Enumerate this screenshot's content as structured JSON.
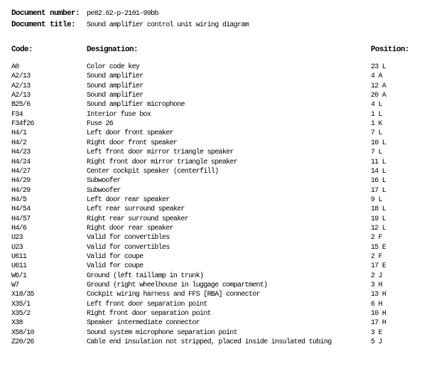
{
  "document": {
    "number_label": "Document number:",
    "number_value": "pe82.62-p-2101-99bb",
    "title_label": "Document title:",
    "title_value": "Sound amplifier control unit wiring diagram"
  },
  "table": {
    "headers": {
      "code": "Code:",
      "designation": "Designation:",
      "position": "Position:"
    },
    "rows": [
      {
        "code": "A0",
        "designation": "Color code key",
        "position": "23 L"
      },
      {
        "code": "A2/13",
        "designation": "Sound amplifier",
        "position": "4 A"
      },
      {
        "code": "A2/13",
        "designation": "Sound amplifier",
        "position": "12 A"
      },
      {
        "code": "A2/13",
        "designation": "Sound amplifier",
        "position": "20 A"
      },
      {
        "code": "B25/6",
        "designation": "Sound amplifier microphone",
        "position": "4 L"
      },
      {
        "code": "F34",
        "designation": "Interior fuse box",
        "position": "1 L"
      },
      {
        "code": "F34f26",
        "designation": "Fuse 26",
        "position": "1 K"
      },
      {
        "code": "H4/1",
        "designation": "Left door front speaker",
        "position": "7 L"
      },
      {
        "code": "H4/2",
        "designation": "Right door front speaker",
        "position": "10 L"
      },
      {
        "code": "H4/23",
        "designation": "Left front door mirror triangle speaker",
        "position": "7 L"
      },
      {
        "code": "H4/24",
        "designation": "Right front door mirror triangle speaker",
        "position": "11 L"
      },
      {
        "code": "H4/27",
        "designation": "Center cockpit speaker (centerfill)",
        "position": "14 L"
      },
      {
        "code": "H4/29",
        "designation": "Subwoofer",
        "position": "16 L"
      },
      {
        "code": "H4/29",
        "designation": "Subwoofer",
        "position": "17 L"
      },
      {
        "code": "H4/5",
        "designation": "Left door rear speaker",
        "position": "9 L"
      },
      {
        "code": "H4/54",
        "designation": "Left rear surround speaker",
        "position": "18 L"
      },
      {
        "code": "H4/57",
        "designation": "Right rear surround speaker",
        "position": "19 L"
      },
      {
        "code": "H4/6",
        "designation": "Right door rear speaker",
        "position": "12 L"
      },
      {
        "code": "U23",
        "designation": "Valid for convertibles",
        "position": "2 F"
      },
      {
        "code": "U23",
        "designation": "Valid for convertibles",
        "position": "15 E"
      },
      {
        "code": "U611",
        "designation": "Valid for coupe",
        "position": "2 F"
      },
      {
        "code": "U611",
        "designation": "Valid for coupe",
        "position": "17 E"
      },
      {
        "code": "W6/1",
        "designation": "Ground (left taillamp in trunk)",
        "position": "2 J"
      },
      {
        "code": "W7",
        "designation": "Ground (right wheelhouse in luggage compartment)",
        "position": "3 H"
      },
      {
        "code": "X18/35",
        "designation": "Cockpit wiring harness and FFS [RBA] connector",
        "position": "13 H"
      },
      {
        "code": "X35/1",
        "designation": "Left front door separation point",
        "position": "6 H"
      },
      {
        "code": "X35/2",
        "designation": "Right front door separation point",
        "position": "10 H"
      },
      {
        "code": "X38",
        "designation": "Speaker intermediate connector",
        "position": "17 H"
      },
      {
        "code": "X58/10",
        "designation": "Sound system microphone separation point",
        "position": "3 E"
      },
      {
        "code": "Z20/26",
        "designation": "Cable end insulation not stripped, placed inside insulated tubing",
        "position": "5 J"
      }
    ]
  }
}
